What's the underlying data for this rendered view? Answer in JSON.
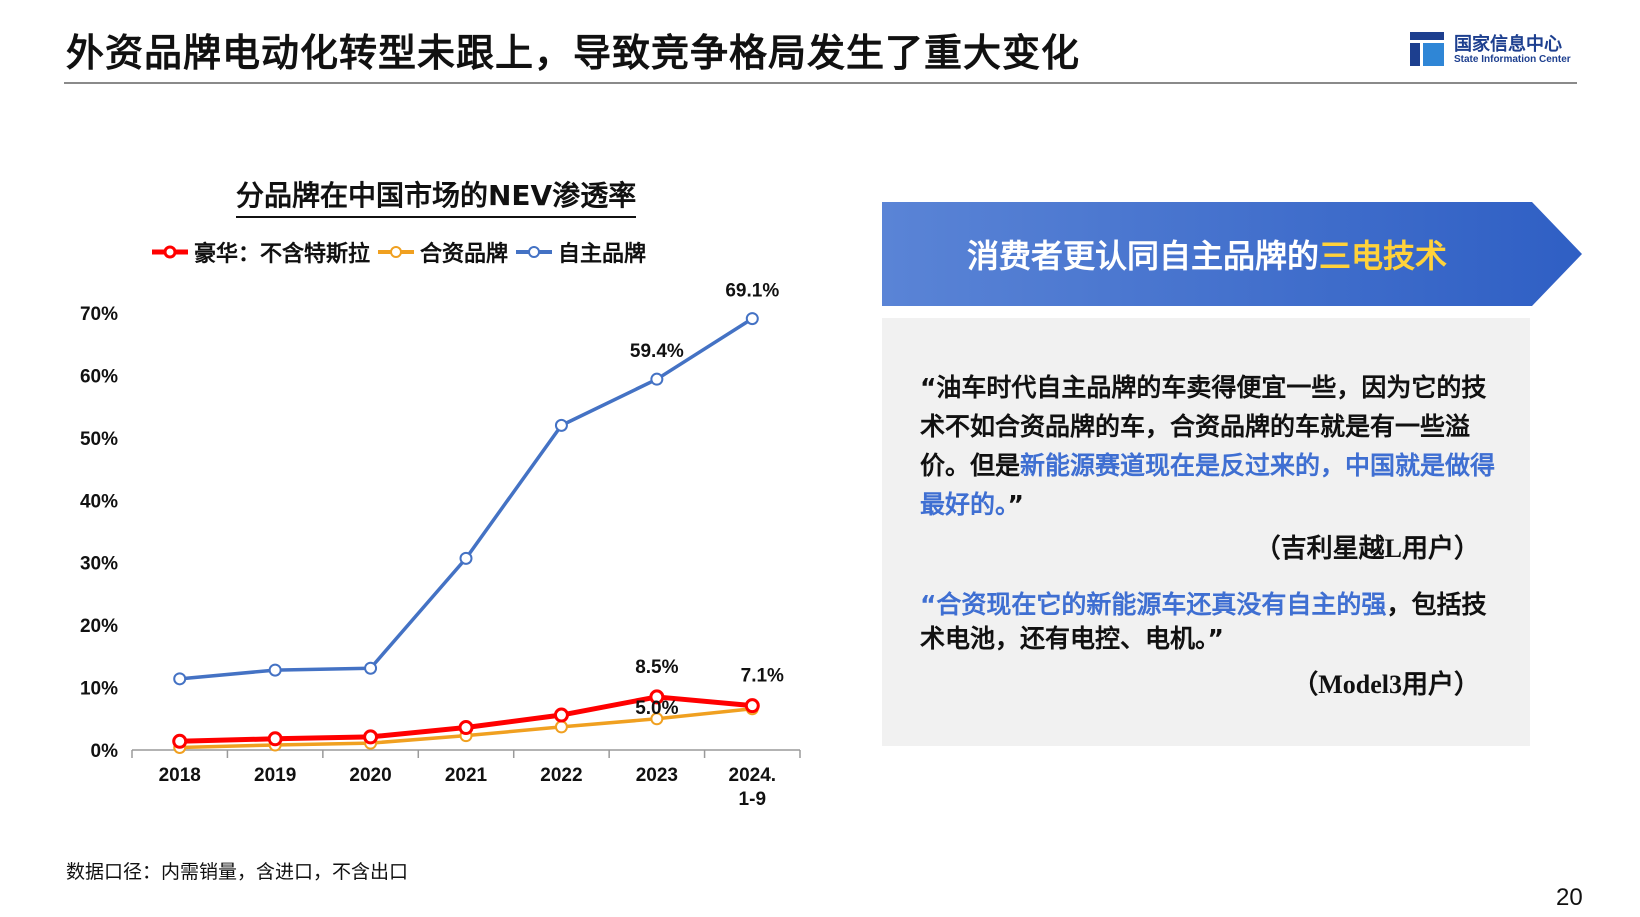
{
  "header": {
    "title": "外资品牌电动化转型未跟上，导致竞争格局发生了重大变化",
    "logo_cn": "国家信息中心",
    "logo_en": "State Information Center",
    "logo_color": "#1d3f8f"
  },
  "chart_data": {
    "type": "line",
    "title": "分品牌在中国市场的NEV渗透率",
    "categories": [
      "2018",
      "2019",
      "2020",
      "2021",
      "2022",
      "2023",
      "2024.\n1-9"
    ],
    "ylim": [
      0,
      70
    ],
    "yticks": [
      "0%",
      "10%",
      "20%",
      "30%",
      "40%",
      "50%",
      "60%",
      "70%"
    ],
    "grid": false,
    "legend_position": "top",
    "series": [
      {
        "name": "豪华：不含特斯拉",
        "color": "#ff0000",
        "values": [
          1.4,
          1.8,
          2.1,
          3.6,
          5.6,
          8.5,
          7.1
        ],
        "labels": [
          "",
          "",
          "",
          "",
          "",
          "8.5%",
          "7.1%"
        ]
      },
      {
        "name": "合资品牌",
        "color": "#f0a020",
        "values": [
          0.4,
          0.8,
          1.1,
          2.3,
          3.7,
          5.0,
          6.6
        ],
        "labels": [
          "",
          "",
          "",
          "",
          "",
          "5.0%",
          ""
        ]
      },
      {
        "name": "自主品牌",
        "color": "#4472c4",
        "values": [
          11.4,
          12.8,
          13.1,
          30.7,
          52.0,
          59.4,
          69.1
        ],
        "labels": [
          "",
          "",
          "",
          "",
          "",
          "59.4%",
          "69.1%"
        ]
      }
    ]
  },
  "banner": {
    "text_prefix": "消费者更认同自主品牌的",
    "text_highlight": "三电技术"
  },
  "quotes": {
    "q1_plain": "“油车时代自主品牌的车卖得便宜一些，因为它的技术不如合资品牌的车，合资品牌的车就是有一些溢价。但是",
    "q1_blue": "新能源赛道现在是反过来的，中国就是做得最好的。",
    "q1_end": "”",
    "q1_attrib": "（吉利星越L用户）",
    "q2_blue": "“合资现在它的新能源车还真没有自主的强",
    "q2_plain": "，包括技术电池，还有电控、电机。”",
    "q2_attrib": "（Model3用户）"
  },
  "footnote": "数据口径：内需销量，含进口，不含出口",
  "page_number": "20"
}
